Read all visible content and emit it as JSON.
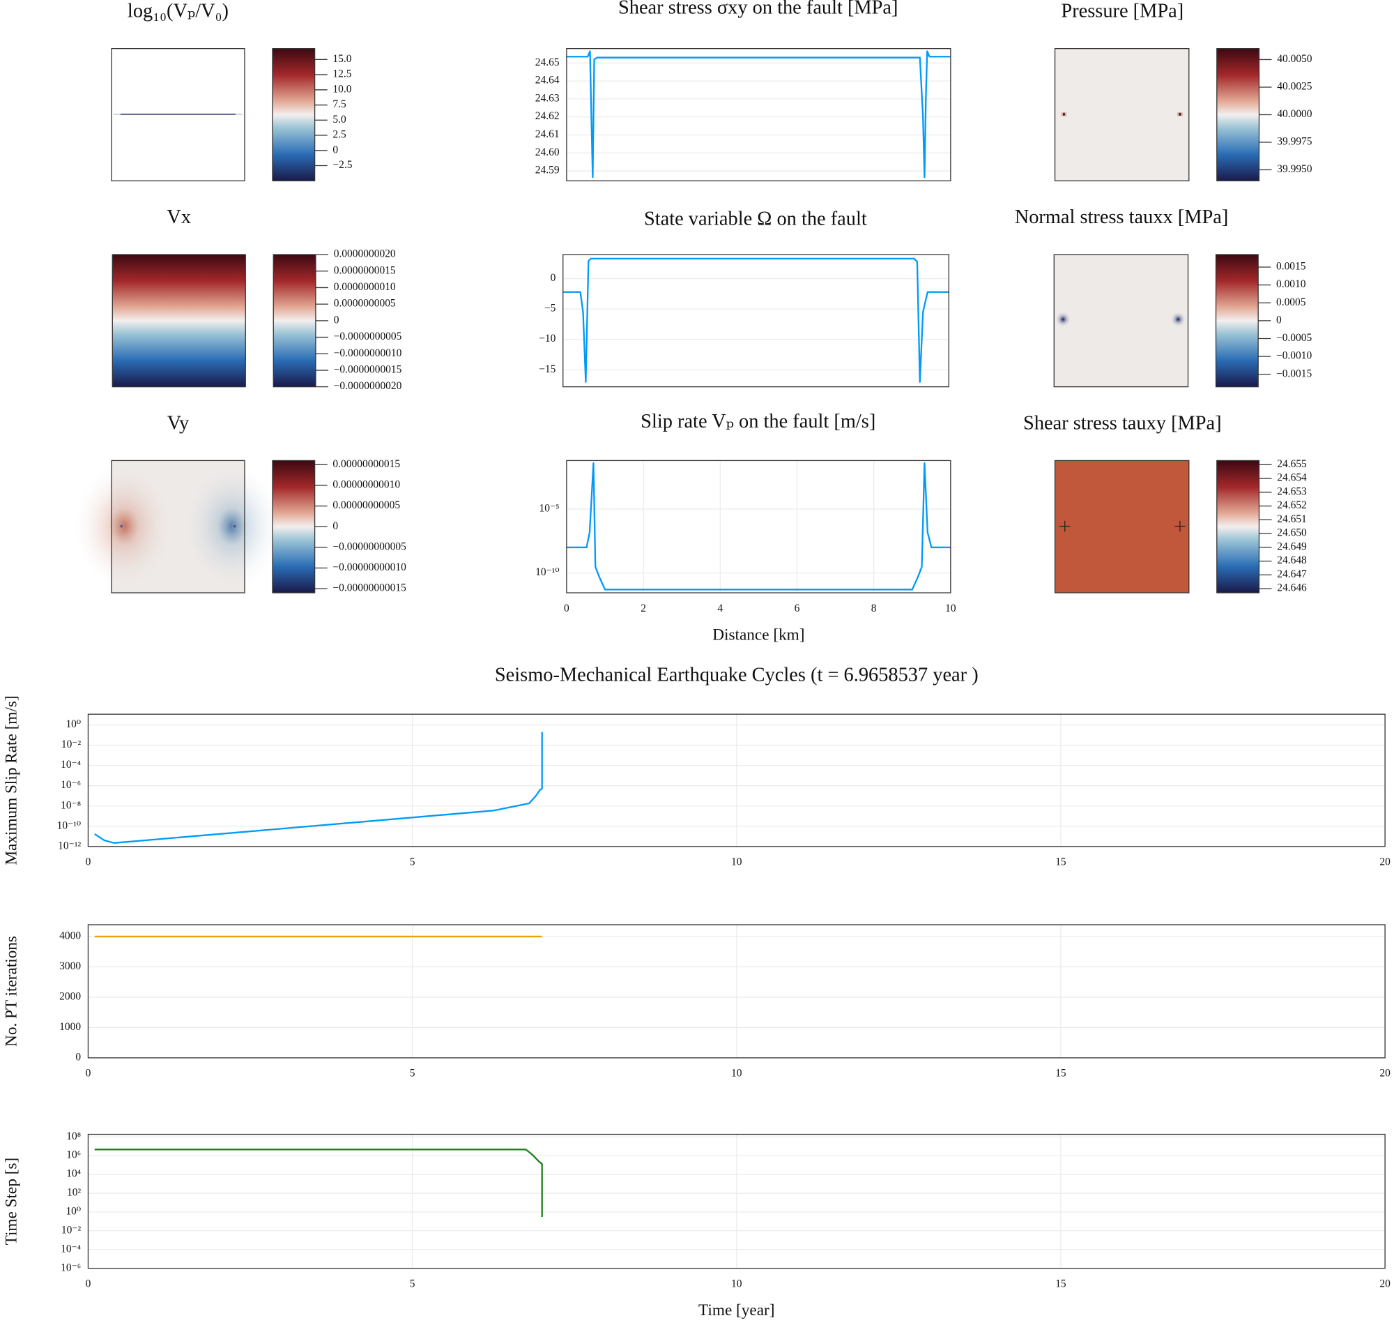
{
  "chart_data": [
    {
      "type": "heatmap",
      "title": "log₁₀(Vₚ/V₀)",
      "zlim": [
        -5,
        16.8
      ],
      "zticks": [
        {
          "value": 15,
          "label": "15.0"
        },
        12.5,
        {
          "value": 10,
          "label": "10.0"
        },
        7.5,
        {
          "value": 5,
          "label": "5.0"
        },
        2.5,
        0,
        {
          "value": -2.5,
          "label": "−2.5"
        }
      ]
    },
    {
      "type": "line",
      "title": "Shear stress σxy on the fault [MPa]",
      "color": "#009af9",
      "x": [
        0,
        0.55,
        0.61,
        0.645,
        0.68,
        0.72,
        0.8,
        5,
        9.2,
        9.28,
        9.32,
        9.355,
        9.39,
        9.45,
        10
      ],
      "values": [
        24.6535,
        24.6535,
        24.6565,
        24.62,
        24.5865,
        24.652,
        24.653,
        24.653,
        24.653,
        24.62,
        24.5865,
        24.63,
        24.6565,
        24.6535,
        24.6535
      ],
      "xlim": [
        0,
        10
      ],
      "ylim": [
        24.5845,
        24.658
      ],
      "yticks": [
        24.65,
        24.64,
        24.63,
        24.62,
        24.61,
        {
          "value": 24.6,
          "label": "24.60"
        },
        24.59
      ],
      "grid": true
    },
    {
      "type": "heatmap",
      "title": "Pressure [MPa]",
      "zlim": [
        39.994,
        40.006
      ],
      "zticks": [
        {
          "value": 40.005,
          "label": "40.0050"
        },
        {
          "value": 40.0025,
          "label": "40.0025"
        },
        {
          "value": 40,
          "label": "40.0000"
        },
        {
          "value": 39.9975,
          "label": "39.9975"
        },
        {
          "value": 39.995,
          "label": "39.9950"
        }
      ]
    },
    {
      "type": "heatmap",
      "title": "Vx",
      "zlim": [
        -2e-09,
        2e-09
      ],
      "zticks": [
        {
          "value": 2e-09,
          "label": "0.0000000020"
        },
        {
          "value": 1.5e-09,
          "label": "0.0000000015"
        },
        {
          "value": 1e-09,
          "label": "0.0000000010"
        },
        {
          "value": 5e-10,
          "label": "0.0000000005"
        },
        0,
        {
          "value": -5e-10,
          "label": "−0.0000000005"
        },
        {
          "value": -1e-09,
          "label": "−0.0000000010"
        },
        {
          "value": -1.5e-09,
          "label": "−0.0000000015"
        },
        {
          "value": -2e-09,
          "label": "−0.0000000020"
        }
      ]
    },
    {
      "type": "line",
      "title": "State variable Ω on the fault",
      "color": "#009af9",
      "x": [
        0,
        0.45,
        0.52,
        0.59,
        0.66,
        0.72,
        5,
        9.1,
        9.18,
        9.25,
        9.33,
        9.45,
        10
      ],
      "values": [
        -2.2,
        -2.2,
        -5.5,
        -17,
        2.9,
        3.3,
        3.3,
        3.3,
        2.8,
        -17,
        -5.5,
        -2.2,
        -2.2
      ],
      "xlim": [
        0,
        10
      ],
      "ylim": [
        -17.8,
        3.97
      ],
      "yticks": [
        0,
        {
          "value": -5,
          "label": "−5"
        },
        {
          "value": -10,
          "label": "−10"
        },
        {
          "value": -15,
          "label": "−15"
        }
      ],
      "grid": true
    },
    {
      "type": "heatmap",
      "title": "Normal stress tauxx [MPa]",
      "zlim": [
        -0.00185,
        0.00185
      ],
      "zticks": [
        0.0015,
        {
          "value": 0.001,
          "label": "0.0010"
        },
        0.0005,
        0,
        {
          "value": -0.0005,
          "label": "−0.0005"
        },
        {
          "value": -0.001,
          "label": "−0.0010"
        },
        {
          "value": -0.0015,
          "label": "−0.0015"
        }
      ]
    },
    {
      "type": "heatmap",
      "title": "Vy",
      "zlim": [
        -1.6e-10,
        1.6e-10
      ],
      "zticks": [
        {
          "value": 1.5e-10,
          "label": "0.00000000015"
        },
        {
          "value": 1e-10,
          "label": "0.00000000010"
        },
        {
          "value": 5e-11,
          "label": "0.00000000005"
        },
        0,
        {
          "value": -5e-11,
          "label": "−0.00000000005"
        },
        {
          "value": -1e-10,
          "label": "−0.00000000010"
        },
        {
          "value": -1.5e-10,
          "label": "−0.00000000015"
        }
      ]
    },
    {
      "type": "line",
      "title": "Slip rate Vₚ on the fault [m/s]",
      "xlabel": "Distance [km]",
      "color": "#009af9",
      "x": [
        0,
        0.52,
        0.6,
        0.7,
        0.75,
        0.85,
        1.0,
        5,
        9.0,
        9.15,
        9.25,
        9.32,
        9.4,
        9.5,
        10
      ],
      "values": [
        1e-08,
        1e-08,
        1.5e-07,
        0.04,
        3e-10,
        5e-11,
        5e-12,
        5e-12,
        5e-12,
        5e-11,
        3e-10,
        0.04,
        1.5e-07,
        1e-08,
        1e-08
      ],
      "xlim": [
        0,
        10
      ],
      "xticks": [
        0,
        2,
        4,
        6,
        8,
        10
      ],
      "yscale": "log",
      "ylim": [
        2.8e-12,
        0.063
      ],
      "yticks": [
        {
          "value": 1e-05,
          "label": "10⁻⁵"
        },
        {
          "value": 1e-10,
          "label": "10⁻¹⁰"
        }
      ],
      "grid": true
    },
    {
      "type": "heatmap",
      "title": "Shear stress tauxy [MPa]",
      "zlim": [
        24.6457,
        24.6553
      ],
      "zticks": [
        24.655,
        24.654,
        24.653,
        24.652,
        24.651,
        {
          "value": 24.65,
          "label": "24.650"
        },
        24.649,
        24.648,
        24.647,
        24.646
      ]
    },
    {
      "type": "line",
      "title": "Seismo-Mechanical Earthquake Cycles (t = 6.9658537 year )",
      "ylabel": "Maximum Slip Rate [m/s]",
      "color": "#009af9",
      "x": [
        0.1,
        0.25,
        0.4,
        6.25,
        6.8,
        6.9,
        6.97,
        7.0,
        7.0
      ],
      "values": [
        1.7e-11,
        4e-12,
        2.2e-12,
        3.5e-09,
        1.8e-08,
        9e-08,
        4e-07,
        5e-07,
        0.2
      ],
      "xlim": [
        0,
        20
      ],
      "xticks": [
        0,
        5,
        10,
        15,
        20
      ],
      "yscale": "log",
      "ylim": [
        1e-12,
        11.5
      ],
      "yticks": [
        {
          "value": 1,
          "label": "10⁰"
        },
        {
          "value": 0.01,
          "label": "10⁻²"
        },
        {
          "value": 0.0001,
          "label": "10⁻⁴"
        },
        {
          "value": 1e-06,
          "label": "10⁻⁶"
        },
        {
          "value": 1e-08,
          "label": "10⁻⁸"
        },
        {
          "value": 1e-10,
          "label": "10⁻¹⁰"
        },
        {
          "value": 1e-12,
          "label": "10⁻¹²"
        }
      ],
      "grid": true
    },
    {
      "type": "line",
      "ylabel": "No. PT iterations",
      "color": "#f0a000",
      "x": [
        0.1,
        7.0
      ],
      "values": [
        4000,
        4000
      ],
      "xlim": [
        0,
        20
      ],
      "xticks": [
        0,
        5,
        10,
        15,
        20
      ],
      "ylim": [
        0,
        4390
      ],
      "yticks": [
        0,
        1000,
        2000,
        3000,
        4000
      ],
      "grid": true
    },
    {
      "type": "line",
      "ylabel": "Time Step [s]",
      "xlabel": "Time [year]",
      "color": "#1f7f1f",
      "x": [
        0.1,
        6.75,
        6.85,
        6.95,
        7.0,
        7.0
      ],
      "values": [
        4600000,
        4600000,
        1300000,
        250000,
        130000,
        0.3
      ],
      "xlim": [
        0,
        20
      ],
      "xticks": [
        0,
        5,
        10,
        15,
        20
      ],
      "yscale": "log",
      "ylim": [
        1e-06,
        190000000
      ],
      "yticks": [
        {
          "value": 100000000,
          "label": "10⁸"
        },
        {
          "value": 1000000,
          "label": "10⁶"
        },
        {
          "value": 10000,
          "label": "10⁴"
        },
        {
          "value": 100,
          "label": "10²"
        },
        {
          "value": 1,
          "label": "10⁰"
        },
        {
          "value": 0.01,
          "label": "10⁻²"
        },
        {
          "value": 0.0001,
          "label": "10⁻⁴"
        },
        {
          "value": 1e-06,
          "label": "10⁻⁶"
        }
      ],
      "grid": true
    }
  ]
}
